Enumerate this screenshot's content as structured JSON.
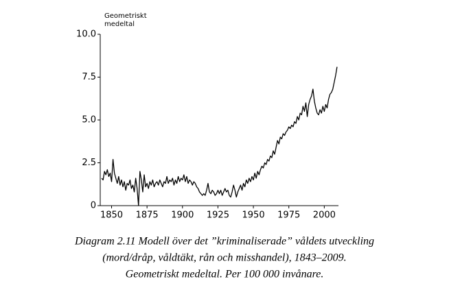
{
  "chart_data": {
    "type": "line",
    "y_label": [
      "Geometriskt",
      "medeltal"
    ],
    "caption": [
      "Diagram 2.11  Modell över det ”kriminaliserade” våldets utveckling",
      "(mord/dråp, våldtäkt, rån och misshandel), 1843–2009.",
      "Geometriskt medeltal. Per 100 000 invånare."
    ],
    "x": [
      1843,
      1844,
      1845,
      1846,
      1847,
      1848,
      1849,
      1850,
      1851,
      1852,
      1853,
      1854,
      1855,
      1856,
      1857,
      1858,
      1859,
      1860,
      1861,
      1862,
      1863,
      1864,
      1865,
      1866,
      1867,
      1868,
      1869,
      1870,
      1871,
      1872,
      1873,
      1874,
      1875,
      1876,
      1877,
      1878,
      1879,
      1880,
      1881,
      1882,
      1883,
      1884,
      1885,
      1886,
      1887,
      1888,
      1889,
      1890,
      1891,
      1892,
      1893,
      1894,
      1895,
      1896,
      1897,
      1898,
      1899,
      1900,
      1901,
      1902,
      1903,
      1904,
      1905,
      1906,
      1907,
      1908,
      1909,
      1910,
      1911,
      1912,
      1913,
      1914,
      1915,
      1916,
      1917,
      1918,
      1919,
      1920,
      1921,
      1922,
      1923,
      1924,
      1925,
      1926,
      1927,
      1928,
      1929,
      1930,
      1931,
      1932,
      1933,
      1934,
      1935,
      1936,
      1937,
      1938,
      1939,
      1940,
      1941,
      1942,
      1943,
      1944,
      1945,
      1946,
      1947,
      1948,
      1949,
      1950,
      1951,
      1952,
      1953,
      1954,
      1955,
      1956,
      1957,
      1958,
      1959,
      1960,
      1961,
      1962,
      1963,
      1964,
      1965,
      1966,
      1967,
      1968,
      1969,
      1970,
      1971,
      1972,
      1973,
      1974,
      1975,
      1976,
      1977,
      1978,
      1979,
      1980,
      1981,
      1982,
      1983,
      1984,
      1985,
      1986,
      1987,
      1988,
      1989,
      1990,
      1991,
      1992,
      1993,
      1994,
      1995,
      1996,
      1997,
      1998,
      1999,
      2000,
      2001,
      2002,
      2003,
      2004,
      2005,
      2006,
      2007,
      2008,
      2009
    ],
    "values": [
      1.6,
      1.5,
      2.0,
      1.8,
      2.1,
      1.7,
      1.9,
      1.4,
      2.7,
      1.9,
      1.6,
      1.3,
      1.7,
      1.2,
      1.5,
      1.1,
      1.4,
      0.9,
      1.3,
      1.2,
      1.5,
      1.0,
      1.2,
      0.8,
      1.6,
      1.0,
      0,
      2.0,
      1.5,
      0.8,
      1.8,
      1.1,
      1.3,
      1.0,
      1.4,
      1.2,
      1.5,
      1.1,
      1.3,
      1.4,
      1.2,
      1.5,
      1.3,
      1.1,
      1.4,
      1.3,
      1.7,
      1.3,
      1.5,
      1.4,
      1.6,
      1.2,
      1.5,
      1.3,
      1.7,
      1.4,
      1.6,
      1.5,
      1.8,
      1.4,
      1.7,
      1.3,
      1.5,
      1.4,
      1.2,
      1.4,
      1.3,
      1.1,
      1.0,
      0.8,
      0.7,
      0.6,
      0.7,
      0.6,
      0.9,
      1.3,
      0.8,
      0.7,
      0.9,
      0.8,
      0.6,
      0.7,
      0.9,
      0.7,
      0.9,
      0.6,
      0.8,
      1.0,
      0.8,
      0.9,
      0.6,
      0.5,
      0.8,
      1.2,
      0.9,
      0.5,
      0.8,
      1.0,
      1.2,
      0.9,
      1.3,
      1.1,
      1.5,
      1.3,
      1.6,
      1.4,
      1.7,
      1.5,
      1.9,
      1.6,
      2.0,
      1.8,
      2.1,
      2.3,
      2.2,
      2.5,
      2.4,
      2.7,
      2.6,
      2.9,
      2.8,
      3.2,
      3.0,
      3.4,
      3.8,
      3.6,
      4.0,
      3.9,
      4.2,
      4.1,
      4.3,
      4.4,
      4.6,
      4.5,
      4.7,
      4.6,
      4.9,
      4.8,
      5.2,
      5.0,
      5.4,
      5.3,
      5.8,
      5.5,
      6.0,
      5.2,
      5.9,
      6.2,
      6.4,
      6.8,
      6.1,
      5.7,
      5.4,
      5.3,
      5.6,
      5.4,
      5.8,
      5.5,
      5.9,
      5.7,
      6.2,
      6.5,
      6.6,
      6.8,
      7.2,
      7.6,
      8.1
    ],
    "color": "#000000",
    "xlim": [
      1842,
      2010
    ],
    "xticks": [
      1850,
      1875,
      1900,
      1925,
      1950,
      1975,
      2000
    ],
    "ylim": [
      0,
      10
    ],
    "yticks": [
      0,
      2.5,
      {
        "value": 5,
        "label": "5.0"
      },
      7.5,
      {
        "value": 10,
        "label": "10.0"
      }
    ]
  }
}
